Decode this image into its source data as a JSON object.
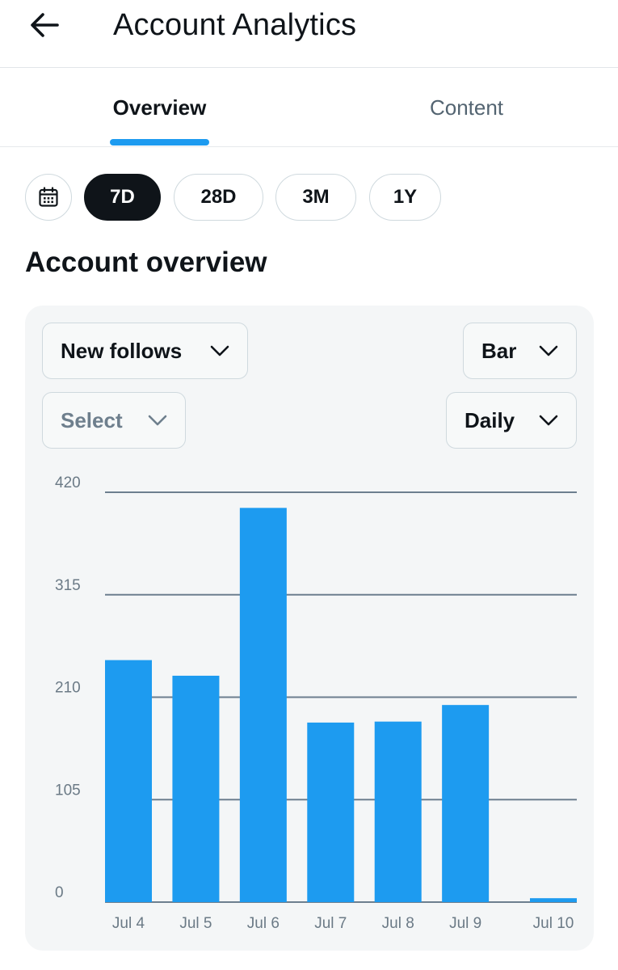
{
  "header": {
    "title": "Account Analytics",
    "back_icon": "arrow-left-icon"
  },
  "tabs": [
    {
      "label": "Overview",
      "active": true
    },
    {
      "label": "Content",
      "active": false
    }
  ],
  "date_range": {
    "calendar_icon": "calendar-icon",
    "options": [
      {
        "label": "7D",
        "active": true
      },
      {
        "label": "28D",
        "active": false
      },
      {
        "label": "3M",
        "active": false
      },
      {
        "label": "1Y",
        "active": false
      }
    ]
  },
  "section_title": "Account overview",
  "controls": {
    "metric": "New follows",
    "chart_type": "Bar",
    "compare_placeholder": "Select",
    "interval": "Daily"
  },
  "colors": {
    "accent": "#1d9bf0",
    "text": "#0f1419",
    "muted": "#536471",
    "grid": "#6d7f8f"
  },
  "chart_data": {
    "type": "bar",
    "categories": [
      "Jul 4",
      "Jul 5",
      "Jul 6",
      "Jul 7",
      "Jul 8",
      "Jul 9",
      "Jul 10"
    ],
    "values": [
      248,
      232,
      404,
      184,
      185,
      202,
      4
    ],
    "yticks": [
      "0",
      "105",
      "210",
      "315",
      "420"
    ],
    "ylim": [
      0,
      420
    ],
    "grid": true,
    "bar_color": "#1d9bf0"
  }
}
